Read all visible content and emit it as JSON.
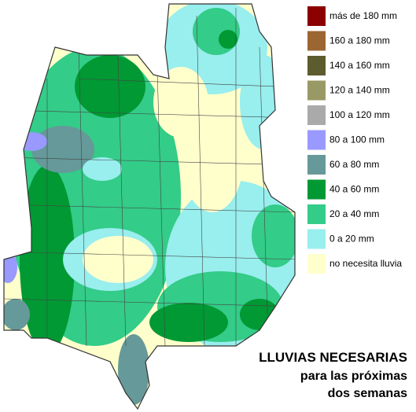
{
  "title": {
    "line1": "LLUVIAS NECESARIAS",
    "line2": "para las próximas",
    "line3": "dos semanas"
  },
  "legend": [
    {
      "label": "más de 180 mm",
      "color": "#8b0000"
    },
    {
      "label": "160 a 180 mm",
      "color": "#9c6633"
    },
    {
      "label": "140 a 160 mm",
      "color": "#5c5c2e"
    },
    {
      "label": "120 a 140 mm",
      "color": "#999966"
    },
    {
      "label": "100 a 120 mm",
      "color": "#aaaaaa"
    },
    {
      "label": "80 a 100 mm",
      "color": "#9999ff"
    },
    {
      "label": "60 a 80 mm",
      "color": "#669999"
    },
    {
      "label": "40 a 60 mm",
      "color": "#009933"
    },
    {
      "label": "20 a 40 mm",
      "color": "#33cc88"
    },
    {
      "label": "0 a 20 mm",
      "color": "#99eeee"
    },
    {
      "label": "no necesita lluvia",
      "color": "#ffffcc"
    }
  ]
}
